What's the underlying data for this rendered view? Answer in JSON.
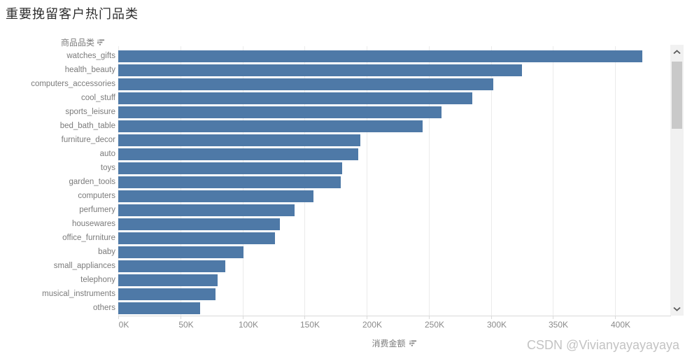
{
  "title": "重要挽留客户热门品类",
  "watermark": "CSDN @Vivianyayayayaya",
  "chart": {
    "category_header": "商品品类",
    "value_axis_label": "消费金额",
    "category_sort_icon": "sort-descending-icon",
    "value_sort_icon": "sort-descending-icon"
  },
  "colors": {
    "bar": "#4e79a7",
    "title_text": "#2f2f2f",
    "label_text": "#7b7b7b",
    "tick_text": "#8a8a8a",
    "gridline": "#ebebeb",
    "axis_line": "#d9d9d9",
    "scroll_track": "#f1f1f1",
    "scroll_thumb": "#c9c9c9",
    "watermark_text": "#c3c3c3"
  },
  "chart_data": {
    "type": "bar",
    "orientation": "horizontal",
    "title": "重要挽留客户热门品类",
    "xlabel": "消费金额",
    "ylabel": "商品品类",
    "sort": "descending",
    "grid": true,
    "value_unit": "K (thousands)",
    "xlim_k": [
      0,
      444
    ],
    "tick_step_k": 50,
    "x_tick_labels": [
      "0K",
      "50K",
      "100K",
      "150K",
      "200K",
      "250K",
      "300K",
      "350K",
      "400K"
    ],
    "categories": [
      "watches_gifts",
      "health_beauty",
      "computers_accessories",
      "cool_stuff",
      "sports_leisure",
      "bed_bath_table",
      "furniture_decor",
      "auto",
      "toys",
      "garden_tools",
      "computers",
      "perfumery",
      "housewares",
      "office_furniture",
      "baby",
      "small_appliances",
      "telephony",
      "musical_instruments",
      "others"
    ],
    "values_k": [
      422,
      325,
      302,
      285,
      260,
      245,
      195,
      193,
      180,
      179,
      157,
      142,
      130,
      126,
      101,
      86,
      80,
      78,
      66
    ],
    "bar_color": "#4e79a7"
  },
  "scrollbar": {
    "up_icon": "chevron-up-icon",
    "down_icon": "chevron-down-icon"
  }
}
